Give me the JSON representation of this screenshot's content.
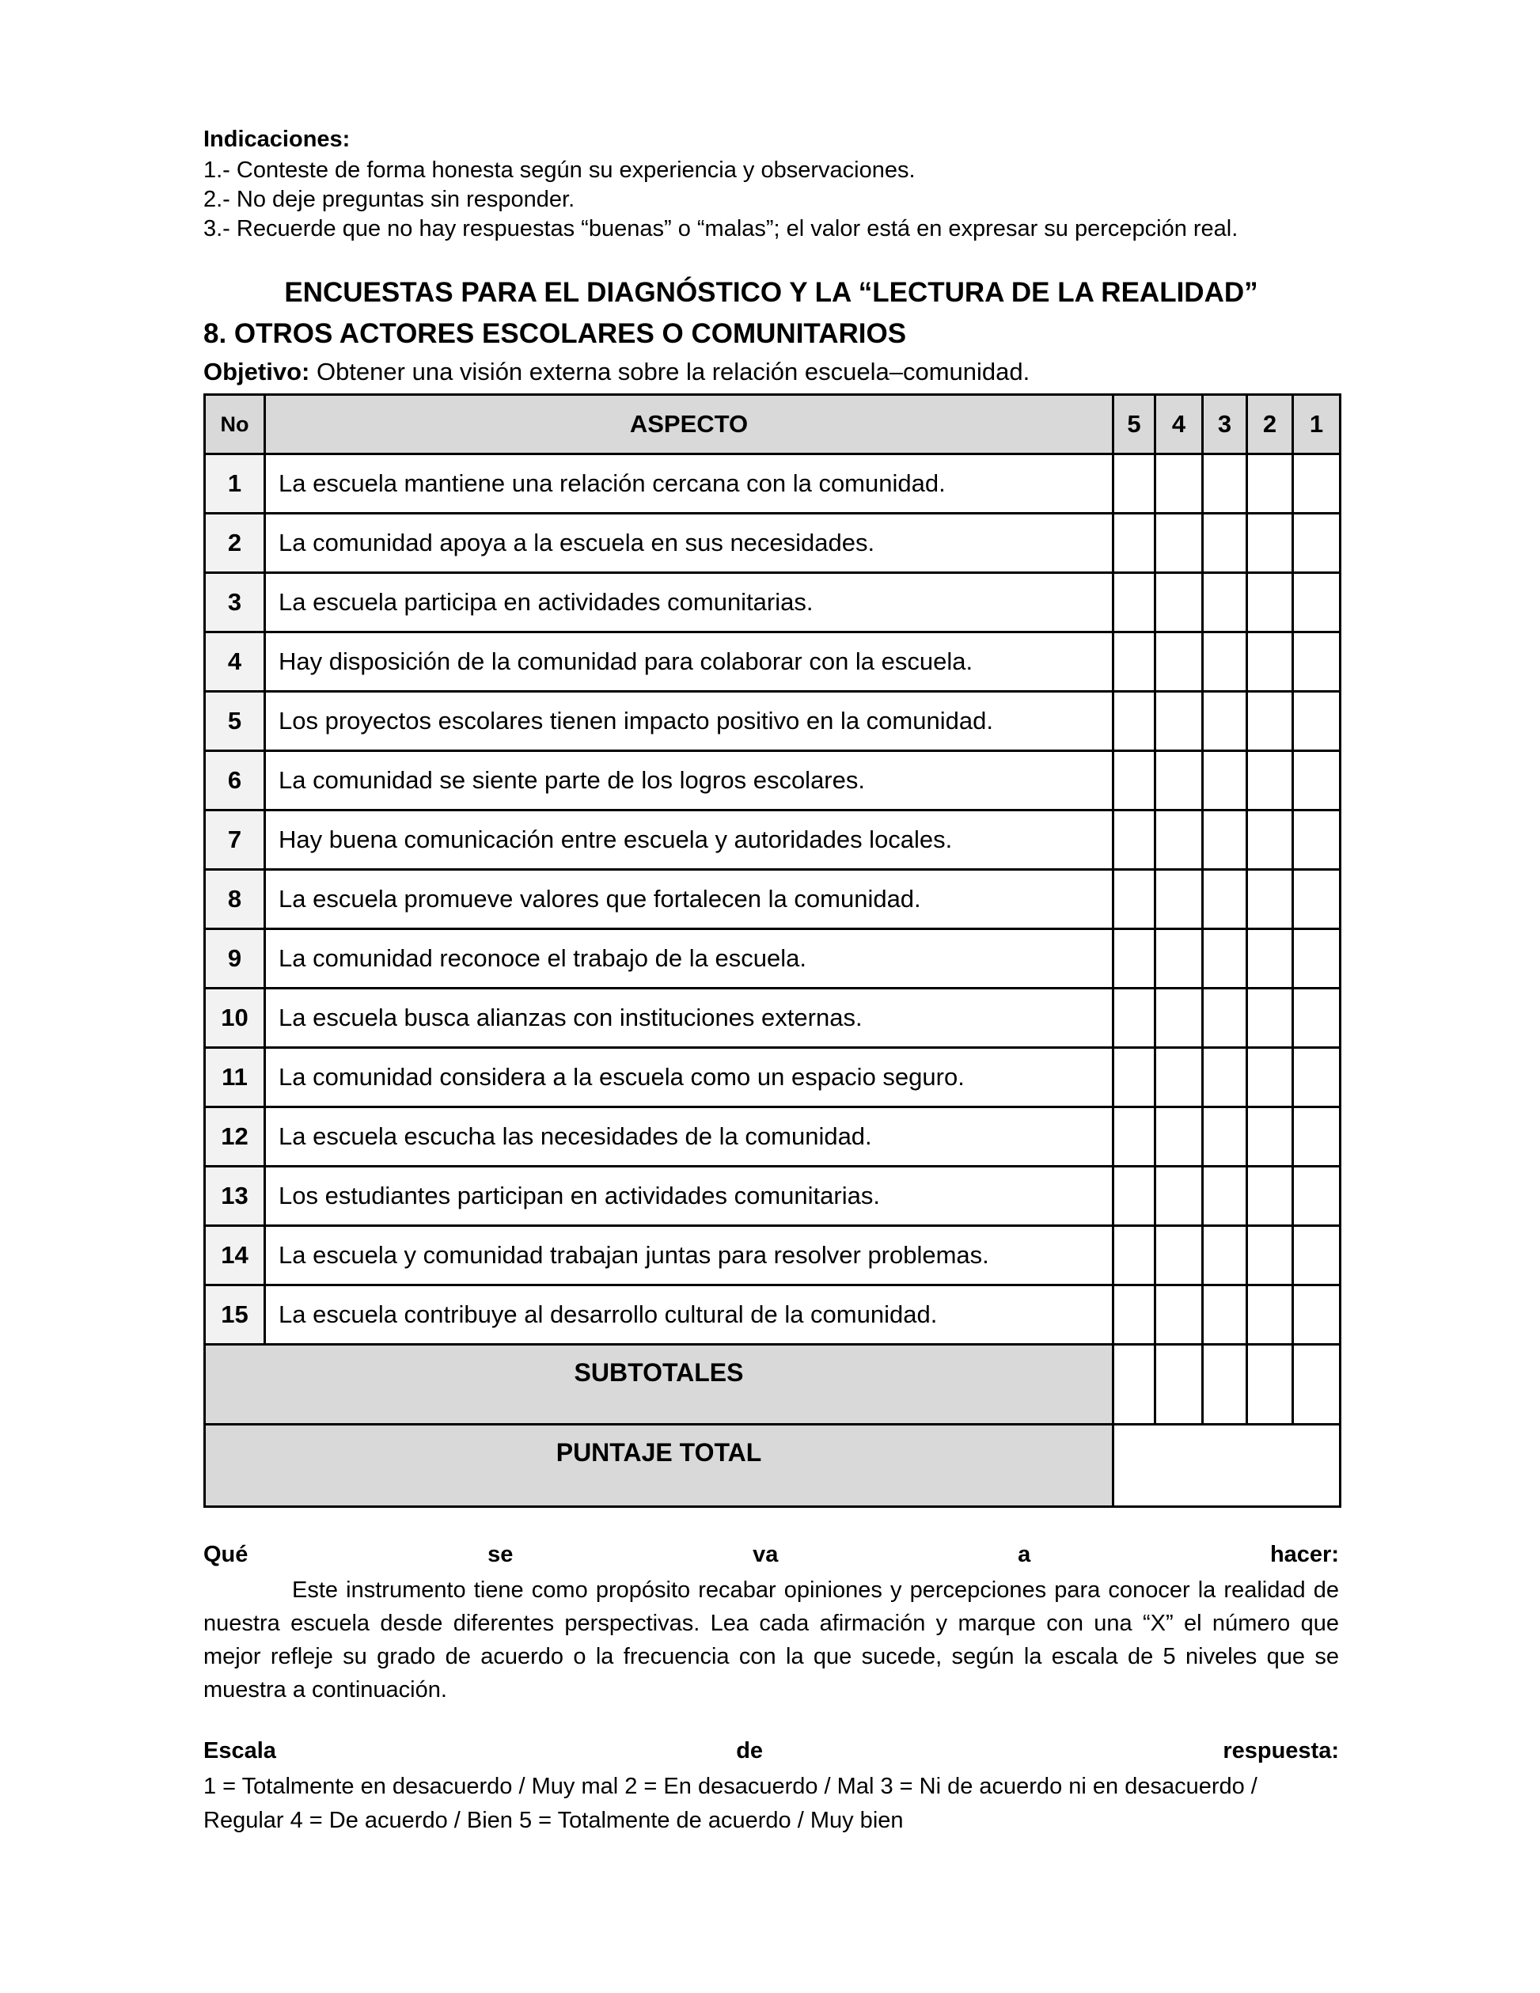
{
  "indicaciones": {
    "heading": "Indicaciones:",
    "items": [
      "1.- Conteste de forma honesta según su experiencia y observaciones.",
      "2.- No deje preguntas sin responder.",
      "3.- Recuerde que no hay respuestas “buenas” o “malas”; el valor está en expresar su percepción real."
    ]
  },
  "title": "ENCUESTAS PARA EL DIAGNÓSTICO Y LA “LECTURA DE LA REALIDAD”",
  "section": "8. OTROS ACTORES ESCOLARES O COMUNITARIOS",
  "objetivo": {
    "label": "Objetivo:",
    "text": " Obtener una visión externa sobre la relación escuela–comunidad."
  },
  "table": {
    "headers": {
      "no": "No",
      "aspecto": "ASPECTO",
      "scale": [
        "5",
        "4",
        "3",
        "2",
        "1"
      ]
    },
    "rows": [
      {
        "no": "1",
        "text": "La escuela mantiene una relación cercana con la comunidad."
      },
      {
        "no": "2",
        "text": "La comunidad apoya a la escuela en sus necesidades."
      },
      {
        "no": "3",
        "text": "La escuela participa en actividades comunitarias."
      },
      {
        "no": "4",
        "text": "Hay disposición de la comunidad para colaborar con la escuela."
      },
      {
        "no": "5",
        "text": "Los proyectos escolares tienen impacto positivo en la comunidad."
      },
      {
        "no": "6",
        "text": "La comunidad se siente parte de los logros escolares."
      },
      {
        "no": "7",
        "text": "Hay buena comunicación entre escuela y autoridades locales."
      },
      {
        "no": "8",
        "text": "La escuela promueve valores que fortalecen la comunidad."
      },
      {
        "no": "9",
        "text": "La comunidad reconoce el trabajo de la escuela."
      },
      {
        "no": "10",
        "text": "La escuela busca alianzas con instituciones externas."
      },
      {
        "no": "11",
        "text": "La comunidad considera a la escuela como un espacio seguro."
      },
      {
        "no": "12",
        "text": "La escuela escucha las necesidades de la comunidad."
      },
      {
        "no": "13",
        "text": "Los estudiantes participan en actividades comunitarias."
      },
      {
        "no": "14",
        "text": "La escuela y comunidad trabajan juntas para resolver problemas."
      },
      {
        "no": "15",
        "text": "La escuela contribuye al desarrollo cultural de la comunidad."
      }
    ],
    "subtotales": "SUBTOTALES",
    "puntaje_total": "PUNTAJE TOTAL"
  },
  "que_hacer": {
    "heading": "Qué se va a hacer:",
    "text": "Este instrumento tiene como propósito recabar opiniones y percepciones para conocer la realidad de nuestra escuela desde diferentes perspectivas. Lea cada afirmación y marque con una “X” el número que mejor refleje su grado de acuerdo o la frecuencia con la que sucede, según la escala de 5 niveles que se muestra a continuación."
  },
  "escala": {
    "heading": "Escala de respuesta:",
    "text": " 1 = Totalmente en desacuerdo / Muy mal  2 = En desacuerdo / Mal  3 = Ni de acuerdo ni en desacuerdo / Regular  4 = De acuerdo / Bien  5 = Totalmente de acuerdo / Muy bien"
  }
}
